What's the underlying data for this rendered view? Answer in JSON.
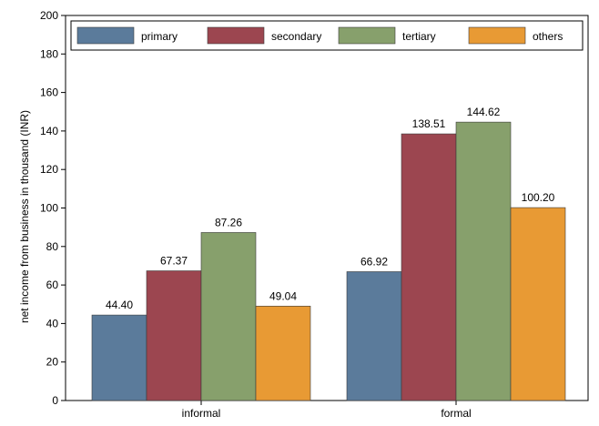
{
  "chart_data": {
    "type": "bar",
    "categories": [
      "informal",
      "formal"
    ],
    "series": [
      {
        "name": "primary",
        "values": [
          44.4,
          66.92
        ],
        "labels": [
          "44.40",
          "66.92"
        ],
        "color": "#5b7b9b"
      },
      {
        "name": "secondary",
        "values": [
          67.37,
          138.51
        ],
        "labels": [
          "67.37",
          "138.51"
        ],
        "color": "#9c4650"
      },
      {
        "name": "tertiary",
        "values": [
          87.26,
          144.62
        ],
        "labels": [
          "87.26",
          "144.62"
        ],
        "color": "#87a06c"
      },
      {
        "name": "others",
        "values": [
          49.04,
          100.2
        ],
        "labels": [
          "49.04",
          "100.20"
        ],
        "color": "#e89a34"
      }
    ],
    "ylabel": "net income from business in thousand (INR)",
    "xlabel": "",
    "ylim": [
      0,
      200
    ],
    "yticks": [
      0,
      20,
      40,
      60,
      80,
      100,
      120,
      140,
      160,
      180,
      200
    ],
    "grid": false,
    "legend_position": "top"
  }
}
